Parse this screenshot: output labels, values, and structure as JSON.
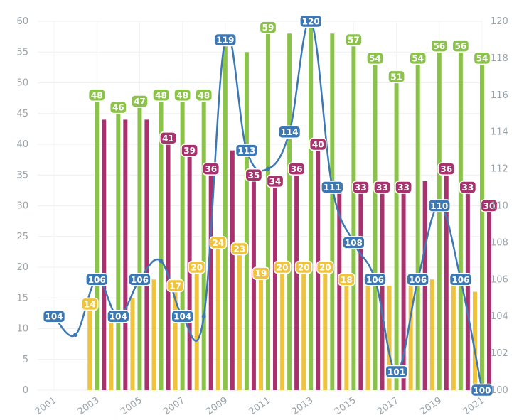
{
  "chart_data": {
    "type": "bar",
    "title": "",
    "xlabel": "",
    "ylabel": "",
    "y2label": "",
    "categories": [
      "2001",
      "2002",
      "2003",
      "2004",
      "2005",
      "2006",
      "2007",
      "2008",
      "2009",
      "2010",
      "2011",
      "2012",
      "2013",
      "2014",
      "2015",
      "2016",
      "2017",
      "2018",
      "2019",
      "2020",
      "2021"
    ],
    "x_tick_labels": [
      "2001",
      "2003",
      "2005",
      "2007",
      "2009",
      "2011",
      "2013",
      "2015",
      "2017",
      "2019",
      "2021"
    ],
    "ylim": [
      0,
      60
    ],
    "y_ticks": [
      "0",
      "5",
      "10",
      "15",
      "20",
      "25",
      "30",
      "35",
      "40",
      "45",
      "50",
      "55",
      "60"
    ],
    "y2lim": [
      100,
      120
    ],
    "y2_ticks": [
      "100",
      "102",
      "104",
      "106",
      "108",
      "110",
      "112",
      "114",
      "116",
      "118",
      "120"
    ],
    "grid": true,
    "legend": "none",
    "series": [
      {
        "type": "bar",
        "axis": "left",
        "color": "#f0c33c",
        "values": [
          null,
          null,
          14,
          12,
          15,
          18,
          17,
          20,
          24,
          23,
          19,
          20,
          20,
          20,
          18,
          17,
          17,
          17,
          18,
          17,
          16
        ],
        "labels": [
          null,
          null,
          "14",
          null,
          null,
          null,
          "17",
          "20",
          "24",
          "23",
          "19",
          "20",
          "20",
          "20",
          "18",
          null,
          null,
          null,
          null,
          null,
          null
        ]
      },
      {
        "type": "bar",
        "axis": "left",
        "color": "#8bc34a",
        "values": [
          null,
          null,
          48,
          46,
          47,
          48,
          48,
          48,
          57,
          55,
          59,
          58,
          60,
          58,
          57,
          54,
          51,
          54,
          56,
          56,
          54
        ],
        "labels": [
          null,
          null,
          "48",
          "46",
          "47",
          "48",
          "48",
          "48",
          null,
          null,
          "59",
          null,
          null,
          null,
          "57",
          "54",
          "51",
          "54",
          "56",
          "56",
          "54"
        ]
      },
      {
        "type": "bar",
        "axis": "left",
        "color": "#a8326e",
        "values": [
          null,
          null,
          44,
          44,
          44,
          41,
          39,
          36,
          39,
          35,
          34,
          36,
          40,
          33,
          33,
          33,
          33,
          34,
          36,
          33,
          30
        ],
        "labels": [
          null,
          null,
          null,
          null,
          null,
          "41",
          "39",
          "36",
          null,
          "35",
          "34",
          "36",
          "40",
          null,
          "33",
          "33",
          "33",
          null,
          "36",
          "33",
          "30"
        ]
      },
      {
        "type": "line",
        "axis": "right",
        "color": "#3c78b4",
        "values": [
          104,
          103,
          106,
          104,
          106,
          107,
          104,
          104,
          119,
          113,
          112,
          114,
          120,
          111,
          108,
          106,
          101,
          106,
          110,
          106,
          100
        ],
        "labels": [
          "104",
          null,
          "106",
          "104",
          "106",
          null,
          "104",
          null,
          "119",
          "113",
          null,
          "114",
          "120",
          "111",
          "108",
          "106",
          "101",
          "106",
          "110",
          "106",
          "100"
        ]
      }
    ]
  }
}
